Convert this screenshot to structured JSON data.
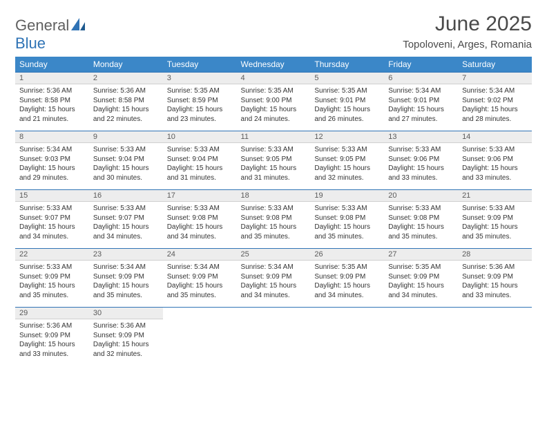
{
  "logo": {
    "general": "General",
    "blue": "Blue"
  },
  "title": "June 2025",
  "location": "Topoloveni, Arges, Romania",
  "colors": {
    "header_bg": "#3b87c8",
    "header_text": "#ffffff",
    "daynum_bg": "#ededed",
    "border_top": "#2f73b5",
    "text": "#333333",
    "logo_gray": "#606060",
    "logo_blue": "#2f73b5"
  },
  "days_of_week": [
    "Sunday",
    "Monday",
    "Tuesday",
    "Wednesday",
    "Thursday",
    "Friday",
    "Saturday"
  ],
  "days": [
    {
      "n": "1",
      "sr": "5:36 AM",
      "ss": "8:58 PM",
      "dl": "15 hours and 21 minutes."
    },
    {
      "n": "2",
      "sr": "5:36 AM",
      "ss": "8:58 PM",
      "dl": "15 hours and 22 minutes."
    },
    {
      "n": "3",
      "sr": "5:35 AM",
      "ss": "8:59 PM",
      "dl": "15 hours and 23 minutes."
    },
    {
      "n": "4",
      "sr": "5:35 AM",
      "ss": "9:00 PM",
      "dl": "15 hours and 24 minutes."
    },
    {
      "n": "5",
      "sr": "5:35 AM",
      "ss": "9:01 PM",
      "dl": "15 hours and 26 minutes."
    },
    {
      "n": "6",
      "sr": "5:34 AM",
      "ss": "9:01 PM",
      "dl": "15 hours and 27 minutes."
    },
    {
      "n": "7",
      "sr": "5:34 AM",
      "ss": "9:02 PM",
      "dl": "15 hours and 28 minutes."
    },
    {
      "n": "8",
      "sr": "5:34 AM",
      "ss": "9:03 PM",
      "dl": "15 hours and 29 minutes."
    },
    {
      "n": "9",
      "sr": "5:33 AM",
      "ss": "9:04 PM",
      "dl": "15 hours and 30 minutes."
    },
    {
      "n": "10",
      "sr": "5:33 AM",
      "ss": "9:04 PM",
      "dl": "15 hours and 31 minutes."
    },
    {
      "n": "11",
      "sr": "5:33 AM",
      "ss": "9:05 PM",
      "dl": "15 hours and 31 minutes."
    },
    {
      "n": "12",
      "sr": "5:33 AM",
      "ss": "9:05 PM",
      "dl": "15 hours and 32 minutes."
    },
    {
      "n": "13",
      "sr": "5:33 AM",
      "ss": "9:06 PM",
      "dl": "15 hours and 33 minutes."
    },
    {
      "n": "14",
      "sr": "5:33 AM",
      "ss": "9:06 PM",
      "dl": "15 hours and 33 minutes."
    },
    {
      "n": "15",
      "sr": "5:33 AM",
      "ss": "9:07 PM",
      "dl": "15 hours and 34 minutes."
    },
    {
      "n": "16",
      "sr": "5:33 AM",
      "ss": "9:07 PM",
      "dl": "15 hours and 34 minutes."
    },
    {
      "n": "17",
      "sr": "5:33 AM",
      "ss": "9:08 PM",
      "dl": "15 hours and 34 minutes."
    },
    {
      "n": "18",
      "sr": "5:33 AM",
      "ss": "9:08 PM",
      "dl": "15 hours and 35 minutes."
    },
    {
      "n": "19",
      "sr": "5:33 AM",
      "ss": "9:08 PM",
      "dl": "15 hours and 35 minutes."
    },
    {
      "n": "20",
      "sr": "5:33 AM",
      "ss": "9:08 PM",
      "dl": "15 hours and 35 minutes."
    },
    {
      "n": "21",
      "sr": "5:33 AM",
      "ss": "9:09 PM",
      "dl": "15 hours and 35 minutes."
    },
    {
      "n": "22",
      "sr": "5:33 AM",
      "ss": "9:09 PM",
      "dl": "15 hours and 35 minutes."
    },
    {
      "n": "23",
      "sr": "5:34 AM",
      "ss": "9:09 PM",
      "dl": "15 hours and 35 minutes."
    },
    {
      "n": "24",
      "sr": "5:34 AM",
      "ss": "9:09 PM",
      "dl": "15 hours and 35 minutes."
    },
    {
      "n": "25",
      "sr": "5:34 AM",
      "ss": "9:09 PM",
      "dl": "15 hours and 34 minutes."
    },
    {
      "n": "26",
      "sr": "5:35 AM",
      "ss": "9:09 PM",
      "dl": "15 hours and 34 minutes."
    },
    {
      "n": "27",
      "sr": "5:35 AM",
      "ss": "9:09 PM",
      "dl": "15 hours and 34 minutes."
    },
    {
      "n": "28",
      "sr": "5:36 AM",
      "ss": "9:09 PM",
      "dl": "15 hours and 33 minutes."
    },
    {
      "n": "29",
      "sr": "5:36 AM",
      "ss": "9:09 PM",
      "dl": "15 hours and 33 minutes."
    },
    {
      "n": "30",
      "sr": "5:36 AM",
      "ss": "9:09 PM",
      "dl": "15 hours and 32 minutes."
    }
  ],
  "labels": {
    "sunrise": "Sunrise: ",
    "sunset": "Sunset: ",
    "daylight": "Daylight: "
  }
}
